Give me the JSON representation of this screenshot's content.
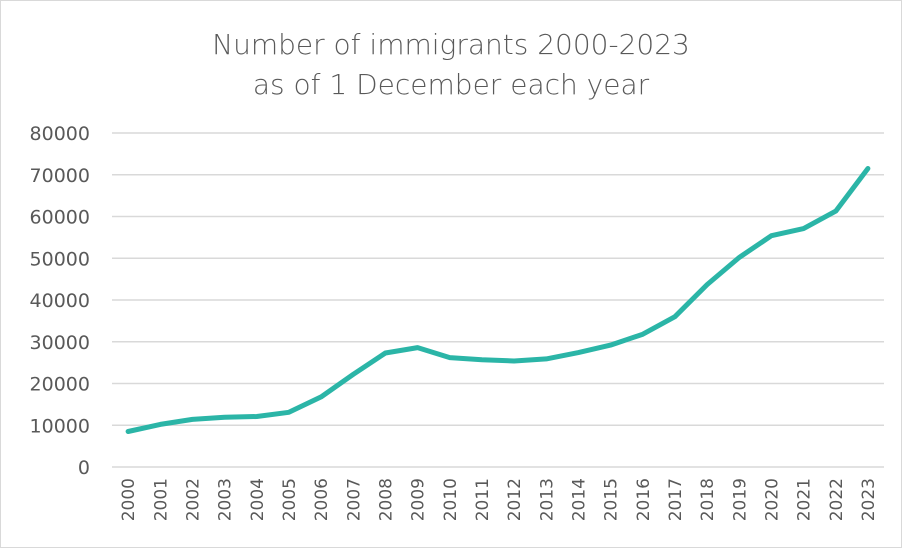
{
  "chart_data": {
    "type": "line",
    "title": "Number of immigrants 2000-2023",
    "subtitle": "as of 1 December each year",
    "xlabel": "",
    "ylabel": "",
    "x": [
      "2000",
      "2001",
      "2002",
      "2003",
      "2004",
      "2005",
      "2006",
      "2007",
      "2008",
      "2009",
      "2010",
      "2011",
      "2012",
      "2013",
      "2014",
      "2015",
      "2016",
      "2017",
      "2018",
      "2019",
      "2020",
      "2021",
      "2022",
      "2023"
    ],
    "series": [
      {
        "name": "",
        "values": [
          8500,
          10200,
          11400,
          11900,
          12100,
          13100,
          16800,
          22200,
          27300,
          28600,
          26200,
          25700,
          25400,
          25900,
          27400,
          29200,
          31800,
          36000,
          43700,
          50200,
          55400,
          57100,
          61300,
          71500
        ]
      }
    ],
    "yticks": [
      "0",
      "10000",
      "20000",
      "30000",
      "40000",
      "50000",
      "60000",
      "70000",
      "80000"
    ],
    "ylim": [
      0,
      80000
    ],
    "grid": true,
    "legend": "none",
    "line_color": "#2bb5a7",
    "grid_color": "#d9d9d9"
  }
}
